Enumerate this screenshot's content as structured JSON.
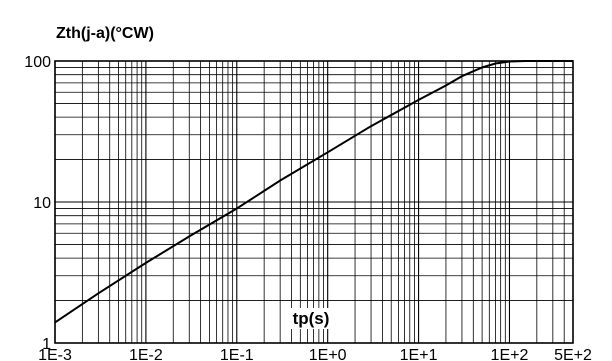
{
  "chart_data": {
    "type": "line",
    "title": "",
    "ylabel": "Zth(j-a)(°CW)",
    "xlabel": "tp(s)",
    "x_scale": "log",
    "y_scale": "log",
    "xlim": [
      0.001,
      500
    ],
    "ylim": [
      1,
      100
    ],
    "grid": true,
    "x_tick_labels": [
      "1E-3",
      "1E-2",
      "1E-1",
      "1E+0",
      "1E+1",
      "1E+2",
      "5E+2"
    ],
    "y_tick_labels": [
      "1",
      "10",
      "100"
    ],
    "series": [
      {
        "x": [
          0.001,
          0.003,
          0.01,
          0.03,
          0.1,
          0.3,
          1,
          3,
          10,
          20,
          30,
          50,
          70,
          100,
          150,
          200,
          300,
          500
        ],
        "y": [
          1.4,
          2.25,
          3.7,
          5.7,
          9.0,
          14.2,
          22.5,
          34.5,
          53,
          67,
          78,
          90,
          96,
          99.2,
          100,
          100,
          100,
          100
        ]
      }
    ]
  }
}
